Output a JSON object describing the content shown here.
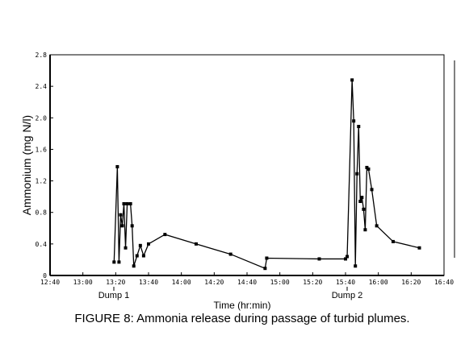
{
  "chart_data": {
    "type": "line",
    "title": "FIGURE 8: Ammonia release during passage of turbid plumes.",
    "x_label": "Time (hr:min)",
    "y_label": "Ammonium (mg N/l)",
    "annotations": [
      "Dump 1",
      "Dump 2"
    ],
    "x": [
      799,
      801,
      802,
      803,
      804,
      805,
      806,
      807,
      809,
      810,
      811,
      813,
      815,
      817,
      820,
      830,
      849,
      870,
      891,
      892,
      924,
      940,
      941,
      944,
      945,
      946,
      947,
      948,
      949,
      950,
      951,
      952,
      953,
      954,
      956,
      959,
      969,
      985
    ],
    "series": [
      {
        "name": "Ammonium",
        "color": "#000000",
        "values": [
          0.17,
          1.38,
          0.17,
          0.77,
          0.63,
          0.91,
          0.35,
          0.91,
          0.91,
          0.63,
          0.12,
          0.25,
          0.38,
          0.25,
          0.4,
          0.52,
          0.4,
          0.27,
          0.09,
          0.22,
          0.21,
          0.21,
          0.24,
          2.48,
          1.96,
          0.12,
          1.29,
          1.89,
          0.94,
          0.99,
          0.84,
          0.58,
          1.37,
          1.35,
          1.09,
          0.63,
          0.43,
          0.35
        ]
      }
    ],
    "xlim": [
      760,
      1000
    ],
    "xticks": [
      {
        "value": 760,
        "label": "12:40"
      },
      {
        "value": 780,
        "label": "13:00"
      },
      {
        "value": 800,
        "label": "13:20"
      },
      {
        "value": 820,
        "label": "13:40"
      },
      {
        "value": 840,
        "label": "14:00"
      },
      {
        "value": 860,
        "label": "14:20"
      },
      {
        "value": 880,
        "label": "14:40"
      },
      {
        "value": 900,
        "label": "15:00"
      },
      {
        "value": 920,
        "label": "15:20"
      },
      {
        "value": 940,
        "label": "15:40"
      },
      {
        "value": 960,
        "label": "16:00"
      },
      {
        "value": 980,
        "label": "16:20"
      },
      {
        "value": 1000,
        "label": "16:40"
      }
    ],
    "ylim": [
      0,
      2.8
    ],
    "yticks": [
      0,
      0.4,
      0.8,
      1.2,
      1.6,
      {
        "value": 2,
        "label": "2.0"
      },
      2.4,
      2.8
    ]
  }
}
